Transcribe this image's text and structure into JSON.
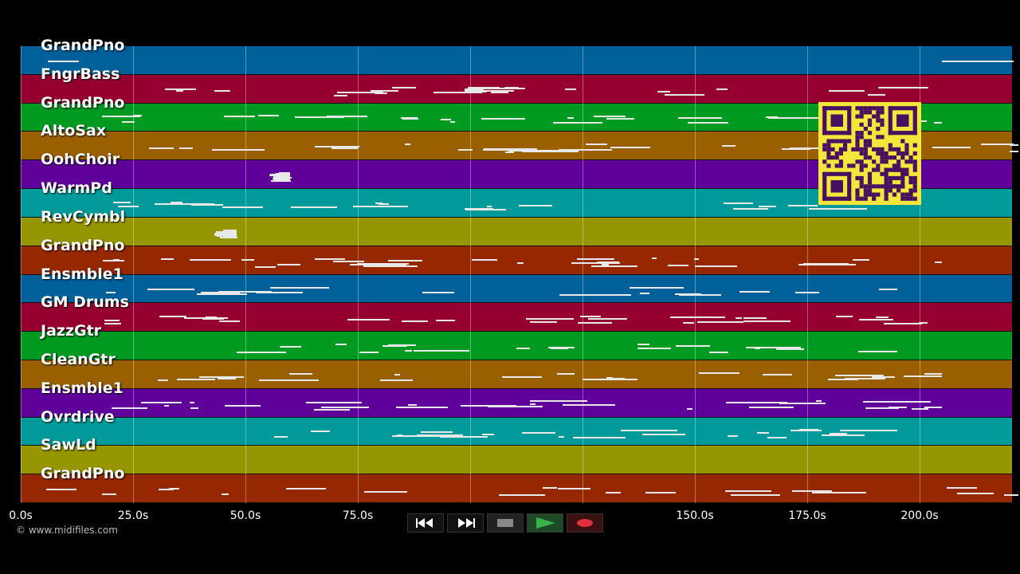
{
  "tracks": [
    {
      "name": "GrandPno",
      "color": "#00609a"
    },
    {
      "name": "FngrBass",
      "color": "#960030"
    },
    {
      "name": "GrandPno",
      "color": "#009a20"
    },
    {
      "name": "AltoSax",
      "color": "#9a6000"
    },
    {
      "name": "OohChoir",
      "color": "#60009a"
    },
    {
      "name": "WarmPd",
      "color": "#009a9a"
    },
    {
      "name": "RevCymbl",
      "color": "#969600"
    },
    {
      "name": "GrandPno",
      "color": "#962800"
    },
    {
      "name": "Ensmble1",
      "color": "#00609a"
    },
    {
      "name": "GM Drums",
      "color": "#960030"
    },
    {
      "name": "JazzGtr",
      "color": "#009a20"
    },
    {
      "name": "CleanGtr",
      "color": "#9a6000"
    },
    {
      "name": "Ensmble1",
      "color": "#60009a"
    },
    {
      "name": "Ovrdrive",
      "color": "#009a9a"
    },
    {
      "name": "SawLd",
      "color": "#969600"
    },
    {
      "name": "GrandPno",
      "color": "#962800"
    }
  ],
  "timeline": {
    "ticks": [
      "0.0s",
      "25.0s",
      "50.0s",
      "75.0s",
      "150.0s",
      "175.0s",
      "200.0s"
    ]
  },
  "copyright": "© www.midifiles.com",
  "transport": {
    "buttons": [
      "rewind",
      "fast-forward",
      "stop",
      "play",
      "record"
    ],
    "colors": {
      "stop": "#888888",
      "play": "#2a8a3a",
      "record": "#e03040"
    }
  },
  "qr_code": {
    "color": "#f5e63c",
    "module_color": "#4a1060"
  }
}
